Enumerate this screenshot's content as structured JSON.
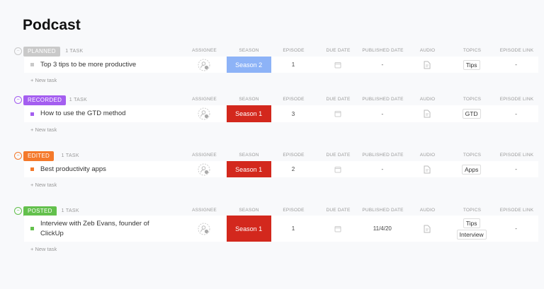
{
  "title": "Podcast",
  "columns": [
    "ASSIGNEE",
    "SEASON",
    "EPISODE",
    "DUE DATE",
    "PUBLISHED DATE",
    "AUDIO",
    "TOPICS",
    "EPISODE LINK"
  ],
  "new_task_label": "+ New task",
  "groups": [
    {
      "status": "PLANNED",
      "color": "#c9c9c9",
      "count": "1 TASK",
      "task": {
        "name": "Top 3 tips to be more productive",
        "season": "Season 2",
        "season_color": "#8db3f7",
        "episode": "1",
        "published": "-",
        "topics": [
          "Tips"
        ],
        "link": "-"
      }
    },
    {
      "status": "RECORDED",
      "color": "#a45ef0",
      "count": "1 TASK",
      "task": {
        "name": "How to use the GTD method",
        "season": "Season 1",
        "season_color": "#d3281d",
        "episode": "3",
        "published": "-",
        "topics": [
          "GTD"
        ],
        "link": "-"
      }
    },
    {
      "status": "EDITED",
      "color": "#f4792b",
      "count": "1 TASK",
      "task": {
        "name": "Best productivity apps",
        "season": "Season 1",
        "season_color": "#d3281d",
        "episode": "2",
        "published": "-",
        "topics": [
          "Apps"
        ],
        "link": "-"
      }
    },
    {
      "status": "POSTED",
      "color": "#63c04c",
      "count": "1 TASK",
      "task": {
        "name": "Interview with Zeb Evans, founder of ClickUp",
        "season": "Season 1",
        "season_color": "#d3281d",
        "episode": "1",
        "published": "11/4/20",
        "topics": [
          "Tips",
          "Interview"
        ],
        "link": "-"
      }
    }
  ]
}
